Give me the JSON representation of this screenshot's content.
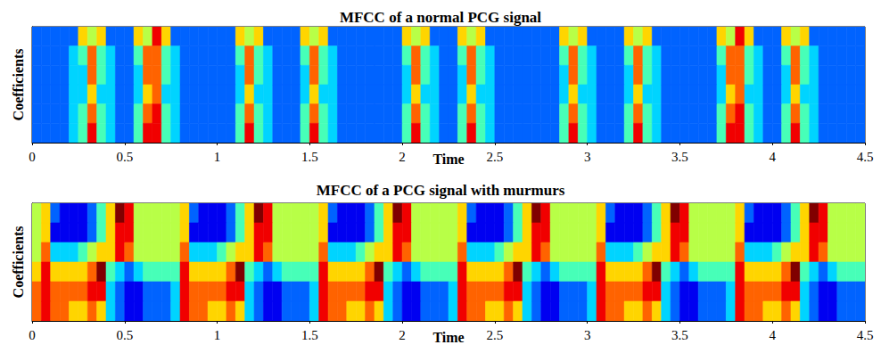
{
  "chart_data": [
    {
      "type": "heatmap",
      "title": "MFCC of a normal PCG signal",
      "x_label": "Time",
      "y_label": "Coefficients",
      "xlim": [
        0,
        4.5
      ],
      "xticks": [
        0,
        0.5,
        1,
        1.5,
        2,
        2.5,
        3,
        3.5,
        4,
        4.5
      ],
      "ylim": [
        0,
        6
      ],
      "tick_labels": "x",
      "color": "jet",
      "zlim": [
        0,
        9
      ],
      "x_edges": [
        0,
        0.05,
        0.1,
        0.15,
        0.2,
        0.25,
        0.3,
        0.35,
        0.4,
        0.45,
        0.5,
        0.55,
        0.6,
        0.65,
        0.7,
        0.75,
        0.8,
        0.85,
        0.9,
        0.95,
        1,
        1.05,
        1.1,
        1.15,
        1.2,
        1.25,
        1.3,
        1.35,
        1.4,
        1.45,
        1.5,
        1.55,
        1.6,
        1.65,
        1.7,
        1.75,
        1.8,
        1.85,
        1.9,
        1.95,
        2,
        2.05,
        2.1,
        2.15,
        2.2,
        2.25,
        2.3,
        2.35,
        2.4,
        2.45,
        2.5,
        2.55,
        2.6,
        2.65,
        2.7,
        2.75,
        2.8,
        2.85,
        2.9,
        2.95,
        3,
        3.05,
        3.1,
        3.15,
        3.2,
        3.25,
        3.3,
        3.35,
        3.4,
        3.45,
        3.5,
        3.55,
        3.6,
        3.65,
        3.7,
        3.75,
        3.8,
        3.85,
        3.9,
        3.95,
        4,
        4.05,
        4.1,
        4.15,
        4.2,
        4.25,
        4.3,
        4.35,
        4.4,
        4.45,
        4.5
      ],
      "y_edges": [
        6,
        5,
        4,
        3,
        2,
        1,
        0
      ],
      "cells": [
        [
          2,
          2,
          2,
          2,
          2,
          6,
          5,
          6,
          2,
          2,
          2,
          6,
          5,
          8,
          6,
          2,
          2,
          2,
          2,
          2,
          2,
          2,
          6,
          5,
          6,
          2,
          2,
          2,
          2,
          6,
          5,
          6,
          2,
          2,
          2,
          2,
          2,
          2,
          2,
          2,
          6,
          5,
          6,
          2,
          2,
          2,
          6,
          5,
          6,
          2,
          2,
          2,
          2,
          2,
          2,
          2,
          2,
          6,
          5,
          6,
          2,
          2,
          2,
          2,
          6,
          5,
          6,
          2,
          2,
          2,
          2,
          2,
          2,
          2,
          6,
          5,
          8,
          6,
          2,
          2,
          2,
          6,
          5,
          6,
          2,
          2,
          2,
          2,
          2,
          2
        ],
        [
          2,
          2,
          2,
          2,
          3,
          4,
          7,
          4,
          3,
          2,
          2,
          4,
          7,
          7,
          4,
          3,
          2,
          2,
          2,
          2,
          2,
          2,
          4,
          7,
          4,
          3,
          2,
          2,
          2,
          4,
          7,
          4,
          3,
          2,
          2,
          2,
          2,
          2,
          2,
          2,
          4,
          7,
          4,
          3,
          2,
          2,
          4,
          7,
          4,
          3,
          2,
          2,
          2,
          2,
          2,
          2,
          2,
          4,
          7,
          4,
          3,
          2,
          2,
          2,
          4,
          7,
          4,
          3,
          2,
          2,
          2,
          2,
          2,
          2,
          4,
          7,
          7,
          4,
          3,
          2,
          2,
          4,
          7,
          4,
          3,
          2,
          2,
          2,
          2,
          2
        ],
        [
          2,
          2,
          2,
          2,
          3,
          3,
          7,
          4,
          3,
          2,
          2,
          3,
          7,
          7,
          4,
          3,
          2,
          2,
          2,
          2,
          2,
          2,
          3,
          7,
          4,
          3,
          2,
          2,
          2,
          3,
          7,
          4,
          3,
          2,
          2,
          2,
          2,
          2,
          2,
          2,
          3,
          7,
          4,
          3,
          2,
          2,
          3,
          7,
          4,
          3,
          2,
          2,
          2,
          2,
          2,
          2,
          2,
          3,
          7,
          4,
          3,
          2,
          2,
          2,
          3,
          7,
          4,
          3,
          2,
          2,
          2,
          2,
          2,
          2,
          3,
          7,
          7,
          4,
          3,
          2,
          2,
          3,
          7,
          4,
          3,
          2,
          2,
          2,
          2,
          2
        ],
        [
          2,
          2,
          2,
          2,
          3,
          3,
          6,
          3,
          3,
          2,
          2,
          3,
          6,
          7,
          3,
          3,
          2,
          2,
          2,
          2,
          2,
          2,
          3,
          6,
          3,
          3,
          2,
          2,
          2,
          3,
          6,
          3,
          3,
          2,
          2,
          2,
          2,
          2,
          2,
          2,
          3,
          6,
          3,
          3,
          2,
          2,
          3,
          6,
          3,
          3,
          2,
          2,
          2,
          2,
          2,
          2,
          2,
          3,
          6,
          3,
          3,
          2,
          2,
          2,
          3,
          6,
          3,
          3,
          2,
          2,
          2,
          2,
          2,
          2,
          3,
          6,
          7,
          3,
          3,
          2,
          2,
          3,
          6,
          3,
          3,
          2,
          2,
          2,
          2,
          2
        ],
        [
          2,
          2,
          2,
          2,
          3,
          4,
          7,
          4,
          3,
          2,
          2,
          4,
          7,
          8,
          4,
          3,
          2,
          2,
          2,
          2,
          2,
          2,
          4,
          7,
          4,
          3,
          2,
          2,
          2,
          4,
          7,
          4,
          3,
          2,
          2,
          2,
          2,
          2,
          2,
          2,
          4,
          7,
          4,
          3,
          2,
          2,
          4,
          7,
          4,
          3,
          2,
          2,
          2,
          2,
          2,
          2,
          2,
          4,
          7,
          4,
          3,
          2,
          2,
          2,
          4,
          7,
          4,
          3,
          2,
          2,
          2,
          2,
          2,
          2,
          4,
          7,
          8,
          4,
          3,
          2,
          2,
          4,
          7,
          4,
          3,
          2,
          2,
          2,
          2,
          2
        ],
        [
          2,
          2,
          2,
          2,
          3,
          4,
          8,
          4,
          3,
          2,
          2,
          4,
          8,
          8,
          4,
          3,
          2,
          2,
          2,
          2,
          2,
          2,
          4,
          8,
          4,
          3,
          2,
          2,
          2,
          4,
          8,
          4,
          3,
          2,
          2,
          2,
          2,
          2,
          2,
          2,
          4,
          8,
          4,
          3,
          2,
          2,
          4,
          8,
          4,
          3,
          2,
          2,
          2,
          2,
          2,
          2,
          2,
          4,
          8,
          4,
          3,
          2,
          2,
          2,
          4,
          8,
          4,
          3,
          2,
          2,
          2,
          2,
          2,
          2,
          4,
          8,
          8,
          4,
          3,
          2,
          2,
          4,
          8,
          4,
          3,
          2,
          2,
          2,
          2,
          2
        ]
      ]
    },
    {
      "type": "heatmap",
      "title": "MFCC of a PCG signal with murmurs",
      "x_label": "Time",
      "y_label": "Coefficients",
      "xlim": [
        0,
        4.5
      ],
      "xticks": [
        0,
        0.5,
        1,
        1.5,
        2,
        2.5,
        3,
        3.5,
        4,
        4.5
      ],
      "ylim": [
        0,
        6
      ],
      "tick_labels": "x",
      "color": "jet",
      "zlim": [
        0,
        9
      ],
      "x_edges": [
        0,
        0.05,
        0.1,
        0.15,
        0.2,
        0.25,
        0.3,
        0.35,
        0.4,
        0.45,
        0.5,
        0.55,
        0.6,
        0.65,
        0.7,
        0.75,
        0.8,
        0.85,
        0.9,
        0.95,
        1,
        1.05,
        1.1,
        1.15,
        1.2,
        1.25,
        1.3,
        1.35,
        1.4,
        1.45,
        1.5,
        1.55,
        1.6,
        1.65,
        1.7,
        1.75,
        1.8,
        1.85,
        1.9,
        1.95,
        2,
        2.05,
        2.1,
        2.15,
        2.2,
        2.25,
        2.3,
        2.35,
        2.4,
        2.45,
        2.5,
        2.55,
        2.6,
        2.65,
        2.7,
        2.75,
        2.8,
        2.85,
        2.9,
        2.95,
        3,
        3.05,
        3.1,
        3.15,
        3.2,
        3.25,
        3.3,
        3.35,
        3.4,
        3.45,
        3.5,
        3.55,
        3.6,
        3.65,
        3.7,
        3.75,
        3.8,
        3.85,
        3.9,
        3.95,
        4,
        4.05,
        4.1,
        4.15,
        4.2,
        4.25,
        4.3,
        4.35,
        4.4,
        4.45,
        4.5
      ],
      "y_edges": [
        6,
        5,
        4,
        3,
        2,
        1,
        0
      ],
      "cells": [
        [
          5,
          6,
          2,
          1,
          1,
          1,
          2,
          4,
          6,
          9,
          8,
          5,
          5,
          5,
          5,
          5,
          6,
          2,
          1,
          1,
          1,
          2,
          4,
          6,
          9,
          8,
          5,
          5,
          5,
          5,
          5,
          6,
          2,
          1,
          1,
          1,
          2,
          4,
          6,
          9,
          8,
          5,
          5,
          5,
          5,
          5,
          6,
          2,
          1,
          1,
          1,
          2,
          4,
          6,
          9,
          8,
          5,
          5,
          5,
          5,
          5,
          6,
          2,
          1,
          1,
          1,
          2,
          4,
          6,
          9,
          8,
          5,
          5,
          5,
          5,
          5,
          6,
          2,
          1,
          1,
          1,
          2,
          4,
          6,
          9,
          8,
          5,
          5,
          5,
          5
        ],
        [
          5,
          6,
          1,
          1,
          1,
          1,
          2,
          4,
          6,
          8,
          8,
          5,
          5,
          5,
          5,
          5,
          6,
          1,
          1,
          1,
          1,
          2,
          4,
          6,
          8,
          8,
          5,
          5,
          5,
          5,
          5,
          6,
          1,
          1,
          1,
          1,
          2,
          4,
          6,
          8,
          8,
          5,
          5,
          5,
          5,
          5,
          6,
          1,
          1,
          1,
          1,
          2,
          4,
          6,
          8,
          8,
          5,
          5,
          5,
          5,
          5,
          6,
          1,
          1,
          1,
          1,
          2,
          4,
          6,
          8,
          8,
          5,
          5,
          5,
          5,
          5,
          6,
          1,
          1,
          1,
          1,
          2,
          4,
          6,
          8,
          8,
          5,
          5,
          5,
          5
        ],
        [
          5,
          7,
          3,
          3,
          3,
          4,
          5,
          6,
          6,
          8,
          7,
          5,
          5,
          5,
          5,
          5,
          7,
          3,
          3,
          3,
          4,
          5,
          6,
          6,
          8,
          7,
          5,
          5,
          5,
          5,
          5,
          7,
          3,
          3,
          3,
          4,
          5,
          6,
          6,
          8,
          7,
          5,
          5,
          5,
          5,
          5,
          7,
          3,
          3,
          3,
          4,
          5,
          6,
          6,
          8,
          7,
          5,
          5,
          5,
          5,
          5,
          7,
          3,
          3,
          3,
          4,
          5,
          6,
          6,
          8,
          7,
          5,
          5,
          5,
          5,
          5,
          7,
          3,
          3,
          3,
          4,
          5,
          6,
          6,
          8,
          7,
          5,
          5,
          5,
          5
        ],
        [
          6,
          8,
          6,
          6,
          6,
          6,
          7,
          9,
          4,
          3,
          2,
          3,
          4,
          4,
          4,
          4,
          8,
          6,
          6,
          6,
          6,
          7,
          9,
          4,
          3,
          2,
          3,
          4,
          4,
          4,
          4,
          8,
          6,
          6,
          6,
          6,
          7,
          9,
          4,
          3,
          2,
          3,
          4,
          4,
          4,
          4,
          8,
          6,
          6,
          6,
          6,
          7,
          9,
          4,
          3,
          2,
          3,
          4,
          4,
          4,
          4,
          8,
          6,
          6,
          6,
          6,
          7,
          9,
          4,
          3,
          2,
          3,
          4,
          4,
          4,
          4,
          8,
          6,
          6,
          6,
          6,
          7,
          9,
          4,
          3,
          2,
          3,
          4,
          4,
          4
        ],
        [
          7,
          8,
          7,
          7,
          7,
          7,
          8,
          8,
          3,
          2,
          1,
          1,
          2,
          2,
          2,
          3,
          8,
          7,
          7,
          7,
          7,
          8,
          8,
          3,
          2,
          1,
          1,
          2,
          2,
          2,
          3,
          8,
          7,
          7,
          7,
          7,
          8,
          8,
          3,
          2,
          1,
          1,
          2,
          2,
          2,
          3,
          8,
          7,
          7,
          7,
          7,
          8,
          8,
          3,
          2,
          1,
          1,
          2,
          2,
          2,
          3,
          8,
          7,
          7,
          7,
          7,
          8,
          8,
          3,
          2,
          1,
          1,
          2,
          2,
          2,
          3,
          8,
          7,
          7,
          7,
          7,
          8,
          8,
          3,
          2,
          1,
          1,
          2,
          2,
          2
        ],
        [
          7,
          8,
          7,
          7,
          6,
          6,
          7,
          6,
          3,
          2,
          1,
          1,
          2,
          2,
          2,
          3,
          8,
          7,
          7,
          6,
          6,
          7,
          6,
          3,
          2,
          1,
          1,
          2,
          2,
          2,
          3,
          8,
          7,
          7,
          6,
          6,
          7,
          6,
          3,
          2,
          1,
          1,
          2,
          2,
          2,
          3,
          8,
          7,
          7,
          6,
          6,
          7,
          6,
          3,
          2,
          1,
          1,
          2,
          2,
          2,
          3,
          8,
          7,
          7,
          6,
          6,
          7,
          6,
          3,
          2,
          1,
          1,
          2,
          2,
          2,
          3,
          8,
          7,
          7,
          6,
          6,
          7,
          6,
          3,
          2,
          1,
          1,
          2,
          2,
          2
        ]
      ]
    }
  ]
}
